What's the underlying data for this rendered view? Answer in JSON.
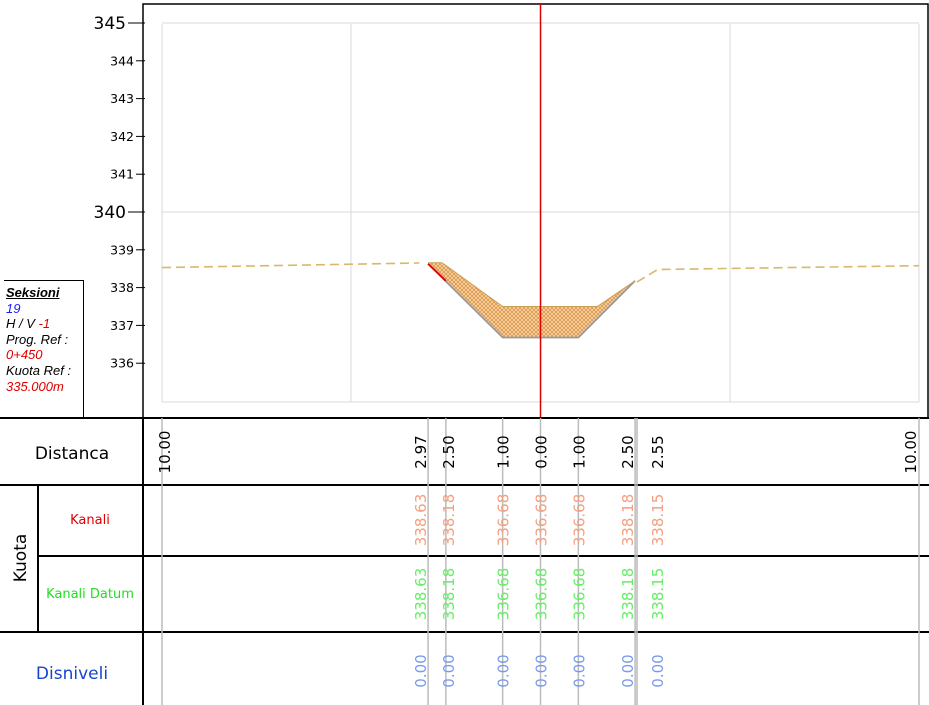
{
  "info": {
    "title": "Seksioni",
    "number": "19",
    "hv_label": "H / V",
    "hv_value": "-1",
    "prog_label": "Prog. Ref :",
    "prog_value": "0+450",
    "kuota_label": "Kuota Ref :",
    "kuota_value": "335.000m"
  },
  "table": {
    "distanca_label": "Distanca",
    "kuota_label": "Kuota",
    "kanali_label": "Kanali",
    "kanali_datum_label": "Kanali Datum",
    "disniveli_label": "Disniveli"
  },
  "colors": {
    "kanali": "#e00000",
    "kanali_values": "#f4a080",
    "datum_label": "#22dd22",
    "datum_values": "#66ee66",
    "disniveli_label": "#1a44cc",
    "disniveli_values": "#7799ee",
    "terrain": "#d9b86a",
    "fill": "#e8b070",
    "axis_red": "#e00000"
  },
  "chart_data": {
    "type": "diagram",
    "y_ticks": [
      345,
      344,
      343,
      342,
      341,
      340,
      339,
      338,
      337,
      336
    ],
    "y_major": [
      345,
      340
    ],
    "ylim": [
      335.0,
      345.5
    ],
    "xlim": [
      -10,
      10
    ],
    "terrain_left": [
      [
        -10,
        338.53
      ],
      [
        -3.2,
        338.65
      ]
    ],
    "terrain_right": [
      [
        2.55,
        338.15
      ],
      [
        3.1,
        338.48
      ],
      [
        10,
        338.58
      ]
    ],
    "canal_bottom": [
      [
        -2.97,
        338.63
      ],
      [
        -1.0,
        336.68
      ],
      [
        1.0,
        336.68
      ],
      [
        2.5,
        338.18
      ]
    ],
    "fill_top": [
      [
        -2.97,
        338.66
      ],
      [
        -2.6,
        338.66
      ],
      [
        -1.0,
        337.5
      ],
      [
        1.5,
        337.5
      ],
      [
        2.5,
        338.18
      ]
    ],
    "red_slope": [
      [
        -2.97,
        338.63
      ],
      [
        -2.5,
        338.18
      ]
    ],
    "stations": [
      {
        "x": -10.0,
        "dist": "10.00",
        "kanali": "",
        "datum": "",
        "disniveli": ""
      },
      {
        "x": -2.97,
        "dist": "2.97",
        "kanali": "338.63",
        "datum": "338.63",
        "disniveli": "0.00"
      },
      {
        "x": -2.5,
        "dist": "2.50",
        "kanali": "338.18",
        "datum": "338.18",
        "disniveli": "0.00"
      },
      {
        "x": -1.0,
        "dist": "1.00",
        "kanali": "336.68",
        "datum": "336.68",
        "disniveli": "0.00"
      },
      {
        "x": 0.0,
        "dist": "0.00",
        "kanali": "336.68",
        "datum": "336.68",
        "disniveli": "0.00"
      },
      {
        "x": 1.0,
        "dist": "1.00",
        "kanali": "336.68",
        "datum": "336.68",
        "disniveli": "0.00"
      },
      {
        "x": 2.5,
        "dist": "2.50",
        "kanali": "338.18",
        "datum": "338.18",
        "disniveli": "0.00"
      },
      {
        "x": 2.55,
        "dist": "2.55",
        "kanali": "338.15",
        "datum": "338.15",
        "disniveli": "0.00"
      },
      {
        "x": 10.0,
        "dist": "10.00",
        "kanali": "",
        "datum": "",
        "disniveli": ""
      }
    ]
  }
}
